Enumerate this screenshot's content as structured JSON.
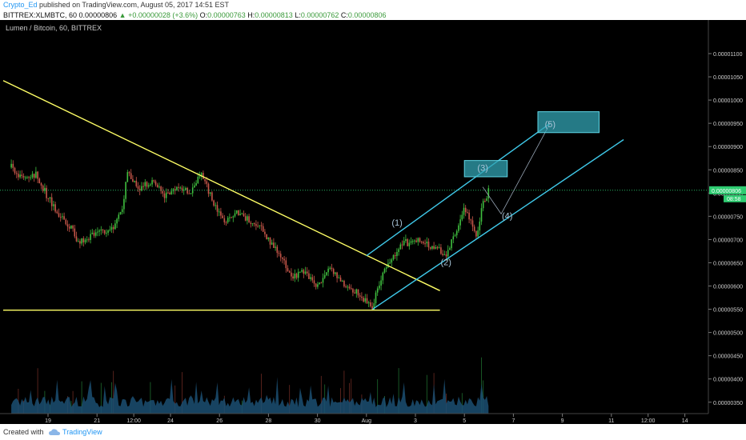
{
  "header": {
    "author": "Crypto_Ed",
    "published_text": " published on TradingView.com, August 05, 2017 14:51 EST",
    "symbol": "BITTREX:XLMBTC, 60",
    "last": "0.00000806",
    "change": "+0.00000028 (+3.6%)",
    "o_label": "O:",
    "o": "0.00000763",
    "h_label": "H:",
    "h": "0.00000813",
    "l_label": "L:",
    "l": "0.00000762",
    "c_label": "C:",
    "c": "0.00000806"
  },
  "footer": {
    "created_with": "Created with",
    "brand": "TradingView"
  },
  "colors": {
    "background": "#000000",
    "up_candle": "#3fbf3f",
    "down_candle": "#c9574a",
    "volume": "#1b4f72",
    "trendline": "#ffff66",
    "channel": "#3fc8e8",
    "target_box": "#31a3b3",
    "wave_label": "#a8c4d8"
  },
  "chart_data": {
    "type": "candlestick",
    "title": "Lumen / Bitcoin, 60, BITTREX",
    "y_scale": "linear",
    "ylim": [
      3e-06,
      1.12e-05
    ],
    "y_ticks": [
      "0.00001100",
      "0.00001050",
      "0.00001000",
      "0.00000950",
      "0.00000900",
      "0.00000850",
      "0.00000800",
      "0.00000750",
      "0.00000700",
      "0.00000650",
      "0.00000600",
      "0.00000550",
      "0.00000500",
      "0.00000450",
      "0.00000400",
      "0.00000350",
      "0.00000300"
    ],
    "x_ticks": [
      "19",
      "21",
      "12:00",
      "24",
      "26",
      "28",
      "30",
      "Aug",
      "3",
      "5",
      "7",
      "9",
      "11",
      "12:00",
      "14"
    ],
    "last_price_label": "0.00000806",
    "countdown_label": "08:58",
    "price_path": [
      [
        "Jul 17 12:00",
        8.55e-06
      ],
      [
        "Jul 18 00:00",
        8.3e-06
      ],
      [
        "Jul 18 12:00",
        8.4e-06
      ],
      [
        "Jul 19 00:00",
        7.9e-06
      ],
      [
        "Jul 19 12:00",
        7.5e-06
      ],
      [
        "Jul 20 00:00",
        7.2e-06
      ],
      [
        "Jul 20 06:00",
        6.9e-06
      ],
      [
        "Jul 20 18:00",
        7.1e-06
      ],
      [
        "Jul 21 06:00",
        7.15e-06
      ],
      [
        "Jul 21 18:00",
        7.3e-06
      ],
      [
        "Jul 22 00:00",
        7.6e-06
      ],
      [
        "Jul 22 06:00",
        8.45e-06
      ],
      [
        "Jul 22 18:00",
        8.1e-06
      ],
      [
        "Jul 23 06:00",
        8.25e-06
      ],
      [
        "Jul 23 18:00",
        7.95e-06
      ],
      [
        "Jul 24 06:00",
        8.15e-06
      ],
      [
        "Jul 24 18:00",
        8e-06
      ],
      [
        "Jul 25 06:00",
        8.4e-06
      ],
      [
        "Jul 25 18:00",
        7.8e-06
      ],
      [
        "Jul 26 06:00",
        7.4e-06
      ],
      [
        "Jul 26 18:00",
        7.6e-06
      ],
      [
        "Jul 27 06:00",
        7.4e-06
      ],
      [
        "Jul 27 18:00",
        7.2e-06
      ],
      [
        "Jul 28 00:00",
        7e-06
      ],
      [
        "Jul 28 12:00",
        6.6e-06
      ],
      [
        "Jul 29 00:00",
        6.2e-06
      ],
      [
        "Jul 29 12:00",
        6.3e-06
      ],
      [
        "Jul 30 00:00",
        6e-06
      ],
      [
        "Jul 30 12:00",
        6.4e-06
      ],
      [
        "Jul 31 00:00",
        6.1e-06
      ],
      [
        "Jul 31 12:00",
        5.9e-06
      ],
      [
        "Aug 1 00:00",
        5.65e-06
      ],
      [
        "Aug 1 06:00",
        5.55e-06
      ],
      [
        "Aug 1 12:00",
        6e-06
      ],
      [
        "Aug 1 18:00",
        6.4e-06
      ],
      [
        "Aug 2 06:00",
        6.7e-06
      ],
      [
        "Aug 2 12:00",
        7e-06
      ],
      [
        "Aug 2 18:00",
        6.9e-06
      ],
      [
        "Aug 3 06:00",
        7e-06
      ],
      [
        "Aug 3 18:00",
        6.8e-06
      ],
      [
        "Aug 4 06:00",
        6.7e-06
      ],
      [
        "Aug 4 12:00",
        7e-06
      ],
      [
        "Aug 4 18:00",
        7.3e-06
      ],
      [
        "Aug 5 00:00",
        7.7e-06
      ],
      [
        "Aug 5 06:00",
        7.4e-06
      ],
      [
        "Aug 5 12:00",
        7.1e-06
      ],
      [
        "Aug 5 18:00",
        7.75e-06
      ],
      [
        "Aug 6 00:00",
        8.06e-06
      ]
    ],
    "horizontal_lines": [
      {
        "name": "support",
        "y": 5.48e-06,
        "color": "#ffff66"
      },
      {
        "name": "last-price",
        "y": 8.06e-06,
        "style": "dotted",
        "color": "#2ecc71"
      }
    ],
    "trendlines": [
      {
        "name": "downtrend",
        "from": [
          "Jul 16",
          1.042e-05
        ],
        "to": [
          "Aug 4",
          5.9e-06
        ],
        "color": "#ffff66"
      },
      {
        "name": "channel-upper",
        "from": [
          "Aug 1",
          6.65e-06
        ],
        "to": [
          "Aug 8 12:00",
          9.5e-06
        ],
        "color": "#3fc8e8"
      },
      {
        "name": "channel-lower",
        "from": [
          "Aug 1 06:00",
          5.5e-06
        ],
        "to": [
          "Aug 11 12:00",
          9.15e-06
        ],
        "color": "#3fc8e8"
      }
    ],
    "projection": [
      [
        "Aug 5 18:00",
        8.13e-06
      ],
      [
        "Aug 6 12:00",
        7.55e-06
      ],
      [
        "Aug 8 12:00",
        9.5e-06
      ]
    ],
    "target_boxes": [
      {
        "name": "wave-3-target",
        "x": [
          "Aug 5",
          "Aug 6 18:00"
        ],
        "y": [
          8.35e-06,
          8.7e-06
        ]
      },
      {
        "name": "wave-5-target",
        "x": [
          "Aug 8",
          "Aug 10 12:00"
        ],
        "y": [
          9.3e-06,
          9.75e-06
        ]
      }
    ],
    "annotations": [
      {
        "text": "(1)",
        "x": "Aug 2 06:00",
        "y": 7.3e-06
      },
      {
        "text": "(2)",
        "x": "Aug 4 06:00",
        "y": 6.45e-06
      },
      {
        "text": "(3)",
        "x": "Aug 5 18:00",
        "y": 8.48e-06
      },
      {
        "text": "(4)",
        "x": "Aug 6 18:00",
        "y": 7.45e-06
      },
      {
        "text": "(5)",
        "x": "Aug 8 12:00",
        "y": 9.42e-06
      }
    ]
  }
}
